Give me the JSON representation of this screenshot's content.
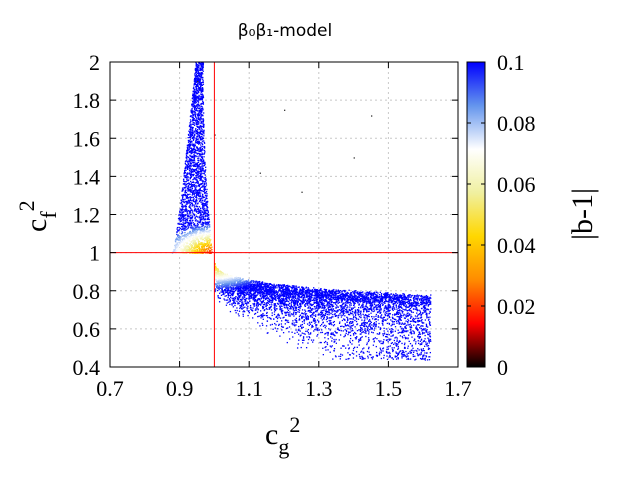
{
  "chart_data": {
    "type": "scatter",
    "title": "β₀β₁-model",
    "xlabel": "c_g^2",
    "ylabel": "c_f^2",
    "xlim": [
      0.7,
      1.7
    ],
    "ylim": [
      0.4,
      2.0
    ],
    "x_ticks": [
      "0.7",
      "0.9",
      "1.1",
      "1.3",
      "1.5",
      "1.7"
    ],
    "y_ticks": [
      "0.4",
      "0.6",
      "0.8",
      "1",
      "1.2",
      "1.4",
      "1.6",
      "1.8",
      "2"
    ],
    "grid": true,
    "reference_lines": {
      "x": 1.0,
      "y": 1.0,
      "color": "#ff0000"
    },
    "colorbar": {
      "label": "|b-1|",
      "range": [
        0,
        0.1
      ],
      "ticks": [
        "0",
        "0.02",
        "0.04",
        "0.06",
        "0.08",
        "0.1"
      ],
      "colors": [
        "#000000",
        "#ff0000",
        "#ff8c00",
        "#ffd700",
        "#f0f0a0",
        "#ffffff",
        "#6495ed",
        "#0000ff"
      ]
    },
    "regions": [
      {
        "name": "upper-left branch",
        "x_range": [
          0.87,
          0.99
        ],
        "y_range": [
          1.0,
          2.0
        ],
        "color_value_near_1_1": 0.03,
        "color_value_far": 0.1
      },
      {
        "name": "lower-right branch",
        "x_range": [
          1.0,
          1.62
        ],
        "y_range": [
          0.44,
          1.0
        ],
        "color_value_near_1_1": 0.03,
        "color_value_far": 0.1
      }
    ]
  }
}
